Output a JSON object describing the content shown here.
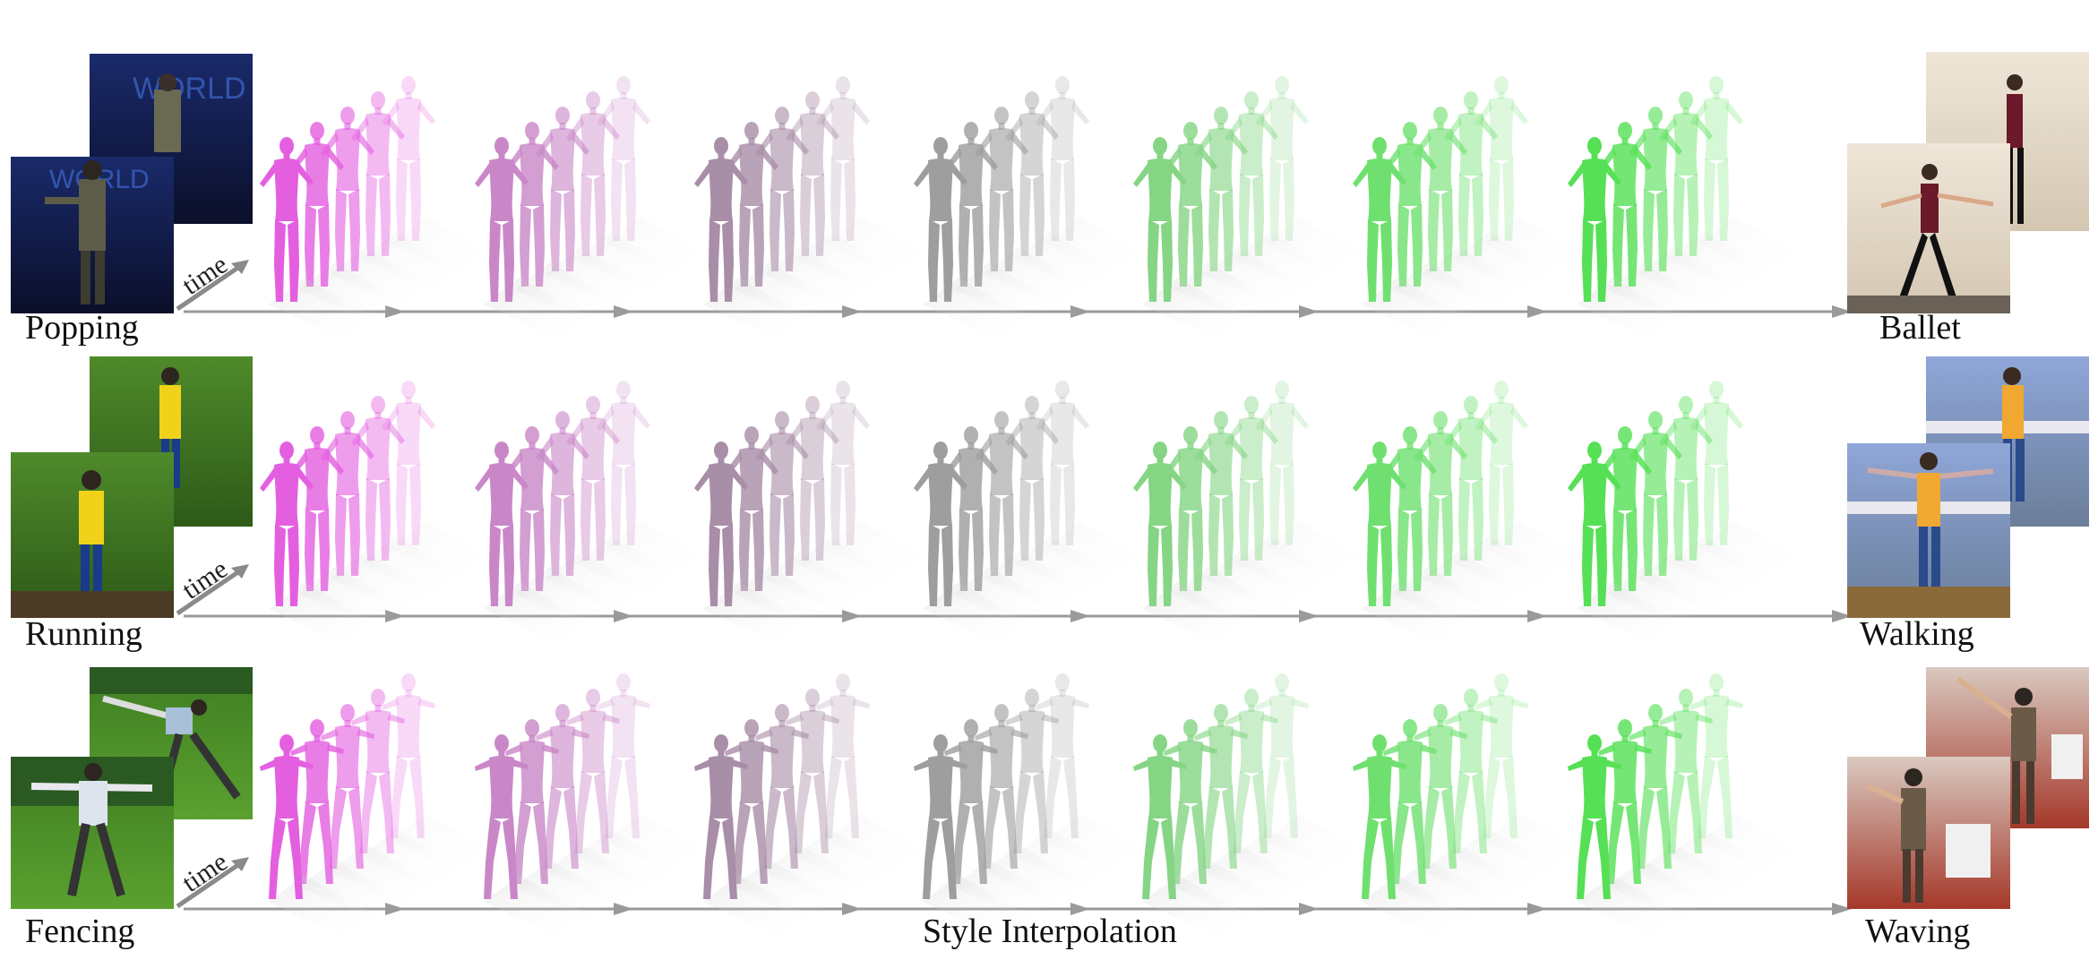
{
  "rows": [
    {
      "source_label": "Popping",
      "target_label": "Ballet",
      "time_label": "time",
      "colors": [
        "#e45fe0",
        "#c987c8",
        "#a98ea8",
        "#9e9e9e",
        "#85d585",
        "#6fe06f",
        "#55e055"
      ]
    },
    {
      "source_label": "Running",
      "target_label": "Walking",
      "time_label": "time",
      "colors": [
        "#e45fe0",
        "#c987c8",
        "#a98ea8",
        "#9e9e9e",
        "#85d585",
        "#6fe06f",
        "#55e055"
      ]
    },
    {
      "source_label": "Fencing",
      "target_label": "Waving",
      "time_label": "time",
      "colors": [
        "#e45fe0",
        "#c987c8",
        "#a98ea8",
        "#9e9e9e",
        "#85d585",
        "#6fe06f",
        "#55e055"
      ]
    }
  ],
  "caption": "Style Interpolation",
  "icons": {
    "figure": "human-body-mesh-icon",
    "arrow": "arrow-right-icon",
    "photo": "video-frame-photo"
  }
}
